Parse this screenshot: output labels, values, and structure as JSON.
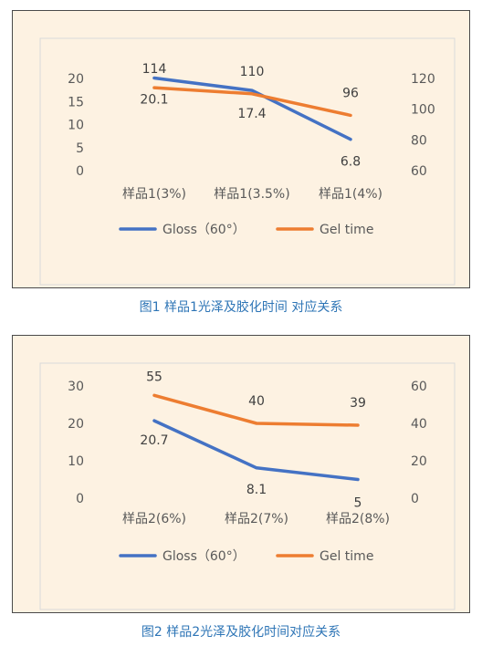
{
  "chart_data": [
    {
      "type": "line",
      "categories": [
        "样品1(3%)",
        "样品1(3.5%)",
        "样品1(4%)"
      ],
      "series": [
        {
          "name": "Gloss（60°）",
          "axis": "left",
          "color": "#4472c4",
          "values": [
            20.1,
            17.4,
            6.8
          ],
          "labels": [
            "20.1",
            "17.4",
            "6.8"
          ]
        },
        {
          "name": "Gel time",
          "axis": "right",
          "color": "#ed7d31",
          "values": [
            114,
            110,
            96
          ],
          "labels": [
            "114",
            "110",
            "96"
          ]
        }
      ],
      "ylim_left": [
        0,
        20
      ],
      "yticks_left": [
        "0",
        "5",
        "10",
        "15",
        "20"
      ],
      "ylim_right": [
        60,
        120
      ],
      "yticks_right": [
        "60",
        "80",
        "100",
        "120"
      ],
      "grid": false,
      "legend": "bottom",
      "caption": "图1 样品1光泽及胶化时间 对应关系"
    },
    {
      "type": "line",
      "categories": [
        "样品2(6%)",
        "样品2(7%)",
        "样品2(8%)"
      ],
      "series": [
        {
          "name": "Gloss（60°）",
          "axis": "left",
          "color": "#4472c4",
          "values": [
            20.7,
            8.1,
            5
          ],
          "labels": [
            "20.7",
            "8.1",
            "5"
          ]
        },
        {
          "name": "Gel time",
          "axis": "right",
          "color": "#ed7d31",
          "values": [
            55,
            40,
            39
          ],
          "labels": [
            "55",
            "40",
            "39"
          ]
        }
      ],
      "ylim_left": [
        0,
        30
      ],
      "yticks_left": [
        "0",
        "10",
        "20",
        "30"
      ],
      "ylim_right": [
        0,
        60
      ],
      "yticks_right": [
        "0",
        "20",
        "40",
        "60"
      ],
      "grid": false,
      "legend": "bottom",
      "caption": "图2 样品2光泽及胶化时间对应关系"
    }
  ]
}
